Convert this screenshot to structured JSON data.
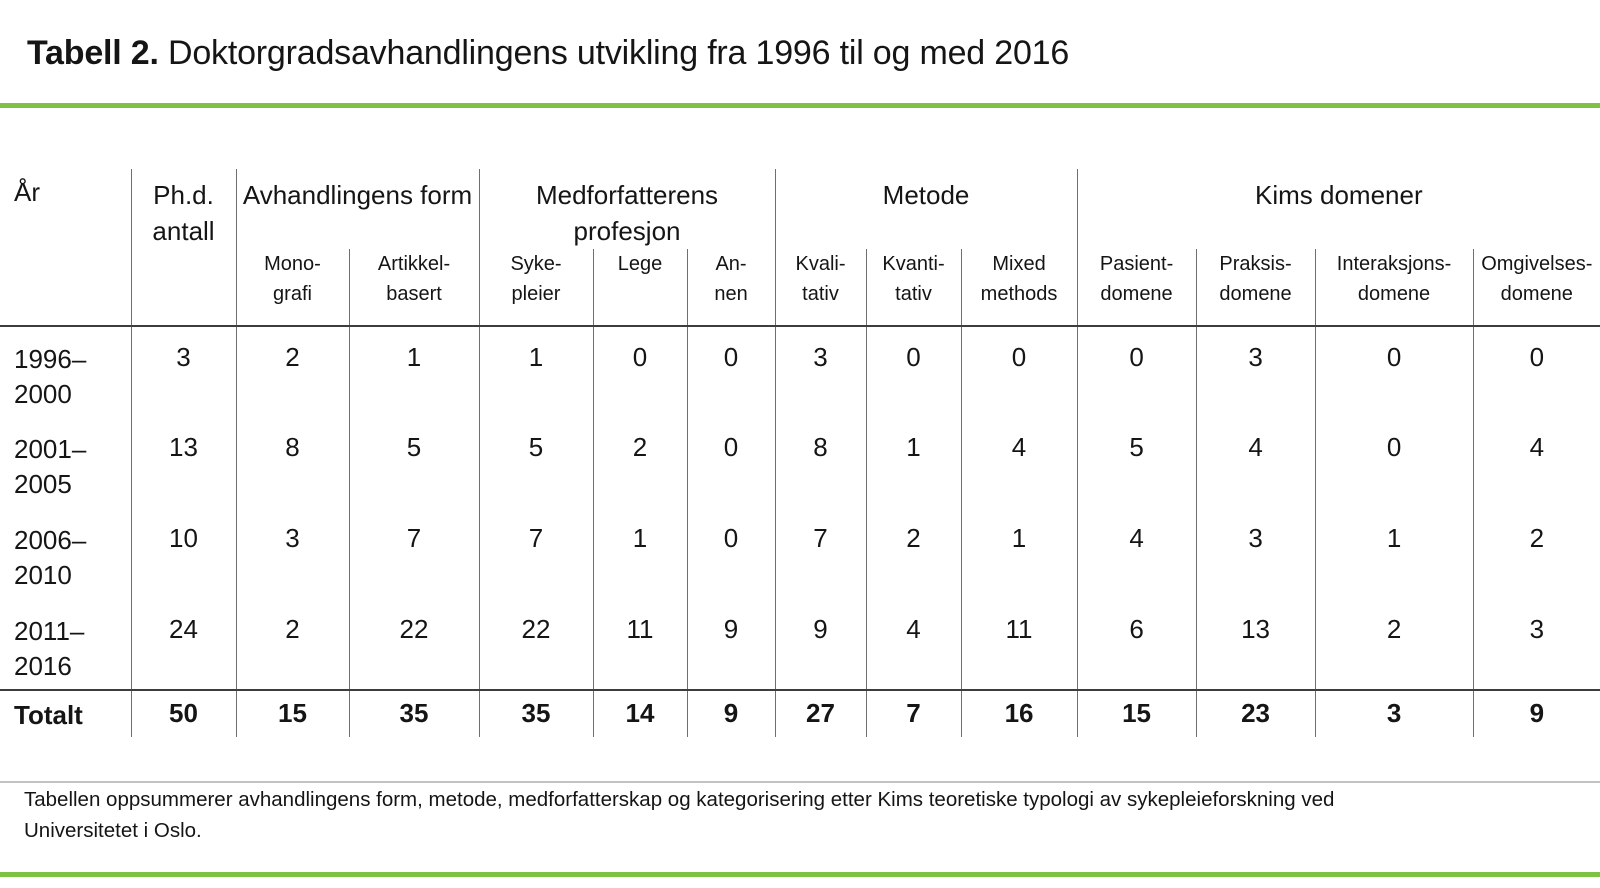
{
  "title": {
    "prefix": "Tabell 2.",
    "rest": " Doktorgradsavhandlingens utvikling fra 1996 til og med 2016"
  },
  "table": {
    "corner_header": "År",
    "phd_header": "Ph.d.\nantall",
    "groups": [
      {
        "label": "Avhandlingens form"
      },
      {
        "label": "Medforfatterens profesjon"
      },
      {
        "label": "Metode"
      },
      {
        "label": "Kims domener"
      }
    ],
    "subcolumns": [
      "Mono-\ngrafi",
      "Artikkel-\nbasert",
      "Syke-\npleier",
      "Lege",
      "An-\nnen",
      "Kvali-\ntativ",
      "Kvanti-\ntativ",
      "Mixed\nmethods",
      "Pasient-\ndomene",
      "Praksis-\ndomene",
      "Interaksjons-\ndomene",
      "Omgivelses-\ndomene"
    ],
    "rows": [
      {
        "year": "1996–\n2000",
        "values": [
          3,
          2,
          1,
          1,
          0,
          0,
          3,
          0,
          0,
          0,
          3,
          0,
          0
        ]
      },
      {
        "year": "2001–\n2005",
        "values": [
          13,
          8,
          5,
          5,
          2,
          0,
          8,
          1,
          4,
          5,
          4,
          0,
          4
        ]
      },
      {
        "year": "2006–\n2010",
        "values": [
          10,
          3,
          7,
          7,
          1,
          0,
          7,
          2,
          1,
          4,
          3,
          1,
          2
        ]
      },
      {
        "year": "2011–\n2016",
        "values": [
          24,
          2,
          22,
          22,
          11,
          9,
          9,
          4,
          11,
          6,
          13,
          2,
          3
        ]
      }
    ],
    "total_label": "Totalt",
    "total_values": [
      50,
      15,
      35,
      35,
      14,
      9,
      27,
      7,
      16,
      15,
      23,
      3,
      9
    ]
  },
  "footnote": "Tabellen oppsummerer avhandlingens form, metode, medforfatterskap og kategorisering etter Kims teoretiske typologi av sykepleieforskning ved Universitetet i Oslo.",
  "colors": {
    "accent_green": "#7dc242",
    "grid_line": "#6f6f6f",
    "strong_line": "#3d3d3d",
    "separator_gray": "#c2c2c2"
  }
}
